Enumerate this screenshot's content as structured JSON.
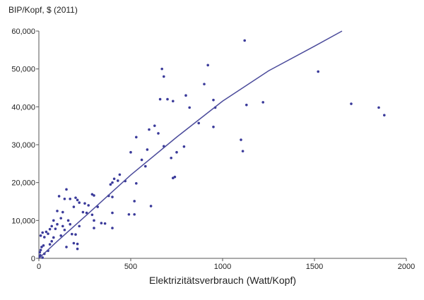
{
  "chart_data": {
    "type": "scatter",
    "y_axis_label": "BIP/Kopf, $ (2011)",
    "x_axis_label": "Elektrizitätsverbrauch (Watt/Kopf)",
    "xlim": [
      0,
      2000
    ],
    "xticks": [
      0,
      500,
      1000,
      1500,
      2000
    ],
    "ylim": [
      0,
      60000
    ],
    "yticks": [
      0,
      {
        "value": 10000,
        "label": "10,000"
      },
      {
        "value": 20000,
        "label": "20,000"
      },
      {
        "value": 30000,
        "label": "30,000"
      },
      {
        "value": 40000,
        "label": "40,000"
      },
      {
        "value": 50000,
        "label": "50,000"
      },
      {
        "value": 60000,
        "label": "60,000"
      }
    ],
    "grid": false,
    "series": [
      {
        "type": "scatter",
        "color": "#3a3a9a",
        "x": [
          1120,
          1520,
          1700,
          1850,
          1880,
          1130,
          1220,
          1100,
          1110,
          920,
          900,
          950,
          960,
          950,
          870,
          800,
          820,
          790,
          670,
          680,
          660,
          700,
          730,
          720,
          740,
          730,
          750,
          680,
          650,
          630,
          600,
          590,
          560,
          580,
          530,
          530,
          500,
          520,
          490,
          520,
          610,
          470,
          440,
          430,
          410,
          400,
          400,
          400,
          400,
          390,
          380,
          360,
          340,
          320,
          300,
          290,
          290,
          300,
          300,
          270,
          250,
          260,
          240,
          220,
          210,
          200,
          190,
          170,
          150,
          140,
          130,
          110,
          100,
          100,
          90,
          80,
          70,
          60,
          50,
          40,
          30,
          20,
          10,
          10,
          5,
          15,
          25,
          30,
          50,
          60,
          70,
          80,
          120,
          130,
          150,
          160,
          170,
          180,
          190,
          200,
          210,
          210,
          220,
          120,
          140,
          5,
          8,
          20
        ],
        "values": [
          57500,
          49300,
          40800,
          39800,
          37800,
          40500,
          41200,
          31300,
          28300,
          51000,
          46000,
          41800,
          39800,
          34700,
          35700,
          43000,
          39800,
          29500,
          50000,
          48000,
          42000,
          42000,
          41500,
          26500,
          21500,
          21200,
          28000,
          29600,
          33000,
          35000,
          34000,
          28700,
          26000,
          24300,
          32000,
          19800,
          28000,
          15100,
          11600,
          11600,
          13800,
          20400,
          22100,
          20500,
          21000,
          16200,
          12000,
          8000,
          20000,
          19500,
          16500,
          9200,
          9300,
          13600,
          16600,
          16900,
          11500,
          10000,
          8000,
          14000,
          14500,
          12000,
          12200,
          14700,
          15400,
          16000,
          13600,
          15700,
          18200,
          15700,
          12200,
          16400,
          12500,
          9000,
          7800,
          10000,
          8500,
          7700,
          6500,
          7000,
          5600,
          6800,
          6000,
          2200,
          1600,
          3000,
          3400,
          1200,
          2000,
          3700,
          4500,
          5500,
          6000,
          8500,
          3000,
          10000,
          9000,
          6400,
          4000,
          6300,
          2500,
          3800,
          8500,
          10600,
          7500,
          500,
          800,
          200
        ]
      },
      {
        "type": "line",
        "color": "#4b4b9b",
        "x": [
          0,
          100,
          250,
          500,
          750,
          1000,
          1250,
          1500,
          1650
        ],
        "values": [
          0,
          4500,
          11000,
          22000,
          32000,
          41500,
          49500,
          56000,
          60000
        ]
      }
    ]
  }
}
